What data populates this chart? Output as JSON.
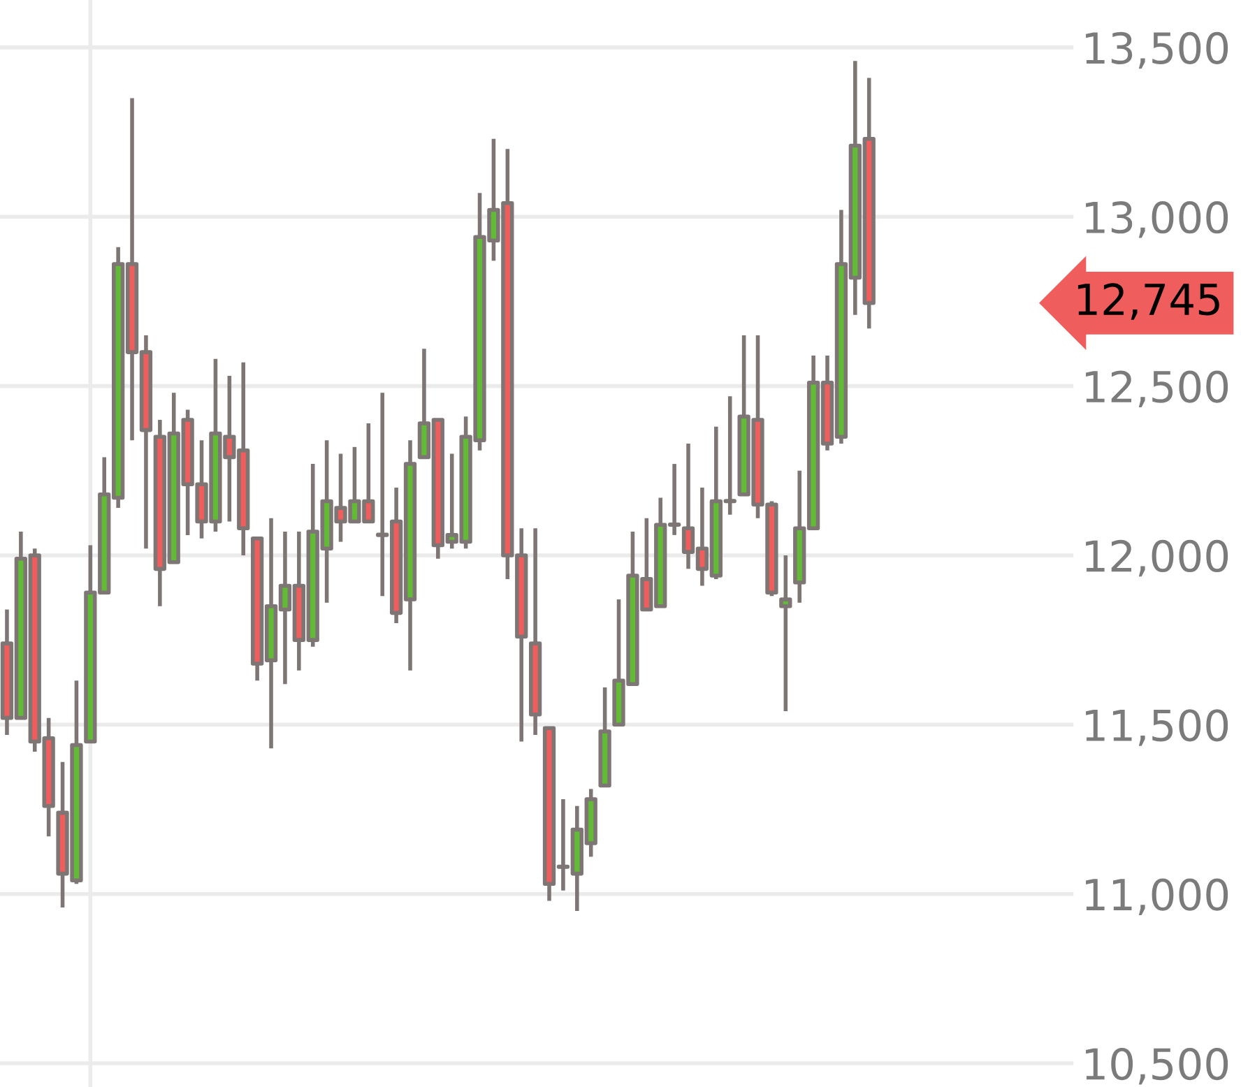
{
  "chart_data": {
    "type": "candlestick",
    "categories": [
      null,
      null,
      null,
      null,
      null,
      null,
      null,
      null,
      null,
      null,
      null,
      null,
      null,
      null,
      null,
      null,
      null,
      null,
      null,
      null,
      null,
      null,
      null,
      null,
      null,
      null,
      null,
      null,
      null,
      null,
      null,
      null,
      null,
      null,
      null,
      null,
      null,
      null,
      null,
      null,
      null,
      null,
      null,
      null,
      null,
      null,
      null,
      null,
      null,
      null,
      null,
      null,
      null,
      null,
      null,
      null,
      null,
      null,
      null,
      null,
      null,
      null,
      null
    ],
    "ohlc": [
      [
        11740,
        11840,
        11470,
        11520
      ],
      [
        11520,
        12070,
        11520,
        11990
      ],
      [
        12000,
        12020,
        11420,
        11450
      ],
      [
        11460,
        11520,
        11170,
        11260
      ],
      [
        11240,
        11390,
        10960,
        11060
      ],
      [
        11040,
        11630,
        11030,
        11440
      ],
      [
        11450,
        12030,
        11450,
        11890
      ],
      [
        11890,
        12290,
        11890,
        12180
      ],
      [
        12170,
        12910,
        12140,
        12860
      ],
      [
        12860,
        13350,
        12340,
        12600
      ],
      [
        12600,
        12650,
        12020,
        12370
      ],
      [
        12350,
        12400,
        11850,
        11960
      ],
      [
        11980,
        12480,
        11980,
        12360
      ],
      [
        12400,
        12430,
        12060,
        12210
      ],
      [
        12210,
        12340,
        12050,
        12100
      ],
      [
        12100,
        12580,
        12070,
        12360
      ],
      [
        12350,
        12530,
        12100,
        12290
      ],
      [
        12310,
        12570,
        12000,
        12080
      ],
      [
        12050,
        12050,
        11630,
        11680
      ],
      [
        11690,
        12110,
        11430,
        11850
      ],
      [
        11840,
        12070,
        11620,
        11910
      ],
      [
        11910,
        12070,
        11660,
        11750
      ],
      [
        11750,
        12270,
        11730,
        12070
      ],
      [
        12020,
        12340,
        11860,
        12160
      ],
      [
        12140,
        12300,
        12040,
        12100
      ],
      [
        12100,
        12320,
        12100,
        12160
      ],
      [
        12160,
        12390,
        12100,
        12100
      ],
      [
        12060,
        12480,
        11880,
        12060
      ],
      [
        12100,
        12200,
        11800,
        11830
      ],
      [
        11870,
        12340,
        11660,
        12270
      ],
      [
        12290,
        12610,
        12290,
        12390
      ],
      [
        12400,
        12400,
        11990,
        12030
      ],
      [
        12040,
        12300,
        12020,
        12060
      ],
      [
        12040,
        12410,
        12020,
        12350
      ],
      [
        12340,
        13070,
        12310,
        12940
      ],
      [
        12930,
        13230,
        12870,
        13020
      ],
      [
        13040,
        13200,
        11930,
        12000
      ],
      [
        12000,
        12080,
        11450,
        11760
      ],
      [
        11740,
        12080,
        11470,
        11530
      ],
      [
        11490,
        11490,
        10980,
        11030
      ],
      [
        11080,
        11280,
        11010,
        11080
      ],
      [
        11060,
        11260,
        10950,
        11190
      ],
      [
        11150,
        11310,
        11110,
        11280
      ],
      [
        11320,
        11610,
        11320,
        11480
      ],
      [
        11500,
        11870,
        11500,
        11630
      ],
      [
        11620,
        12070,
        11620,
        11940
      ],
      [
        11930,
        12110,
        11840,
        11840
      ],
      [
        11850,
        12170,
        11850,
        12090
      ],
      [
        12090,
        12270,
        12060,
        12090
      ],
      [
        12080,
        12330,
        11960,
        12010
      ],
      [
        12020,
        12200,
        11910,
        11960
      ],
      [
        11940,
        12380,
        11930,
        12160
      ],
      [
        12160,
        12470,
        12120,
        12160
      ],
      [
        12180,
        12650,
        12180,
        12410
      ],
      [
        12400,
        12650,
        12110,
        12150
      ],
      [
        12150,
        12160,
        11880,
        11890
      ],
      [
        11850,
        12000,
        11540,
        11870
      ],
      [
        11920,
        12250,
        11860,
        12080
      ],
      [
        12080,
        12590,
        12080,
        12510
      ],
      [
        12510,
        12590,
        12310,
        12330
      ],
      [
        12350,
        13020,
        12330,
        12860
      ],
      [
        12820,
        13460,
        12710,
        13210
      ],
      [
        13230,
        13410,
        12670,
        12745
      ]
    ],
    "colors": [
      "#ef5d5d",
      "#62bb35",
      "#ef5d5d",
      "#ef5d5d",
      "#ef5d5d",
      "#62bb35",
      "#62bb35",
      "#62bb35",
      "#62bb35",
      "#ef5d5d",
      "#ef5d5d",
      "#ef5d5d",
      "#62bb35",
      "#ef5d5d",
      "#ef5d5d",
      "#62bb35",
      "#ef5d5d",
      "#ef5d5d",
      "#ef5d5d",
      "#62bb35",
      "#62bb35",
      "#ef5d5d",
      "#62bb35",
      "#62bb35",
      "#ef5d5d",
      "#62bb35",
      "#ef5d5d",
      "#7d7674",
      "#ef5d5d",
      "#62bb35",
      "#62bb35",
      "#ef5d5d",
      "#62bb35",
      "#62bb35",
      "#62bb35",
      "#62bb35",
      "#ef5d5d",
      "#ef5d5d",
      "#ef5d5d",
      "#ef5d5d",
      "#7d7674",
      "#62bb35",
      "#62bb35",
      "#62bb35",
      "#62bb35",
      "#62bb35",
      "#ef5d5d",
      "#62bb35",
      "#7d7674",
      "#ef5d5d",
      "#ef5d5d",
      "#62bb35",
      "#7d7674",
      "#62bb35",
      "#ef5d5d",
      "#ef5d5d",
      "#62bb35",
      "#62bb35",
      "#62bb35",
      "#ef5d5d",
      "#62bb35",
      "#62bb35",
      "#ef5d5d"
    ],
    "color": "#7d7674",
    "ylim": [
      10430,
      13640
    ],
    "yticks": [
      {
        "value": 10500,
        "label": "10,500"
      },
      {
        "value": 11000,
        "label": "11,000"
      },
      {
        "value": 11500,
        "label": "11,500"
      },
      {
        "value": 12000,
        "label": "12,000"
      },
      {
        "value": 12500,
        "label": "12,500"
      },
      {
        "value": 13000,
        "label": "13,000"
      },
      {
        "value": 13500,
        "label": "13,500"
      }
    ],
    "grid": "y",
    "annotations": [
      "12,745"
    ],
    "tick_labels": "y"
  }
}
